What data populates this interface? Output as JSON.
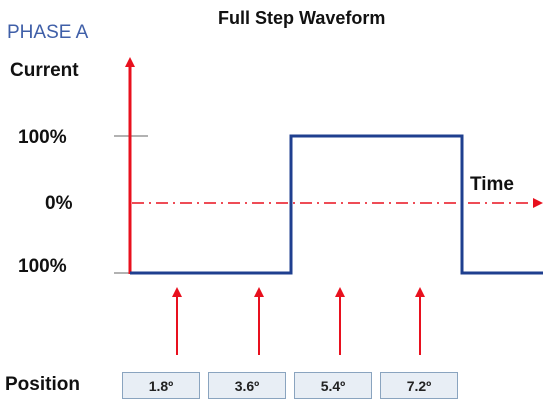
{
  "phase_label": "PHASE A",
  "title": "Full Step Waveform",
  "y_axis_label": "Current",
  "x_axis_label": "Time",
  "ticks": {
    "top": "100%",
    "middle": "0%",
    "bottom": "100%"
  },
  "position_label": "Position",
  "positions": [
    "1.8º",
    "3.6º",
    "5.4º",
    "7.2º"
  ],
  "colors": {
    "axis": "#e8101e",
    "waveform": "#1f3f8f",
    "phase_label": "#3f5fa8",
    "box_fill": "#e8eef5"
  }
}
